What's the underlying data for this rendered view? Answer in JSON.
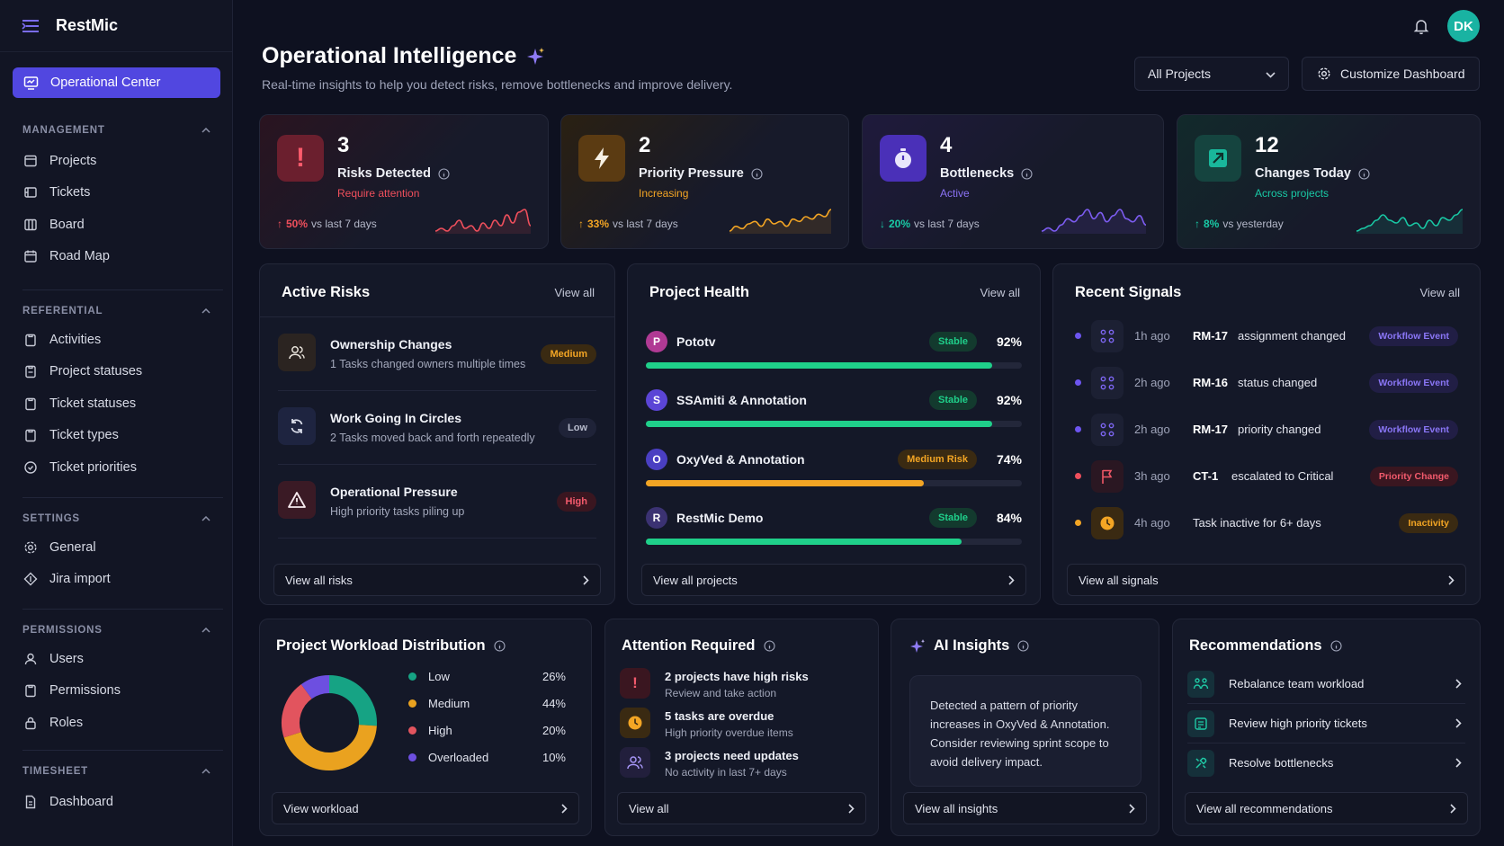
{
  "app": {
    "name": "RestMic",
    "user_initials": "DK"
  },
  "sidebar": {
    "active": "Operational Center",
    "sections": [
      {
        "title": "MANAGEMENT",
        "items": [
          "Projects",
          "Tickets",
          "Board",
          "Road Map"
        ]
      },
      {
        "title": "REFERENTIAL",
        "items": [
          "Activities",
          "Project statuses",
          "Ticket statuses",
          "Ticket types",
          "Ticket priorities"
        ]
      },
      {
        "title": "SETTINGS",
        "items": [
          "General",
          "Jira import"
        ]
      },
      {
        "title": "PERMISSIONS",
        "items": [
          "Users",
          "Permissions",
          "Roles"
        ]
      },
      {
        "title": "TIMESHEET",
        "items": [
          "Dashboard"
        ]
      }
    ]
  },
  "header": {
    "title": "Operational Intelligence",
    "subtitle": "Real-time insights to help you detect risks, remove bottlenecks and improve delivery.",
    "project_select": "All Projects",
    "customize": "Customize Dashboard"
  },
  "kpis": [
    {
      "value": "3",
      "label": "Risks Detected",
      "status": "Require attention",
      "change": "50%",
      "compare": "vs last 7 days",
      "color": "#ef4f5c",
      "spark": [
        6,
        7,
        6,
        8,
        10,
        7,
        8,
        6,
        9,
        7,
        10,
        8,
        12,
        9,
        13,
        14,
        8
      ]
    },
    {
      "value": "2",
      "label": "Priority Pressure",
      "status": "Increasing",
      "change": "33%",
      "compare": "vs last 7 days",
      "color": "#f3a524",
      "spark": [
        4,
        6,
        5,
        7,
        8,
        6,
        9,
        7,
        8,
        6,
        9,
        8,
        10,
        9,
        11,
        10,
        13
      ]
    },
    {
      "value": "4",
      "label": "Bottlenecks",
      "status": "Active",
      "change": "20%",
      "compare": "vs last 7 days",
      "color": "#7c5cf0",
      "spark": [
        5,
        6,
        5,
        7,
        9,
        8,
        10,
        12,
        9,
        11,
        8,
        10,
        12,
        9,
        8,
        10,
        7
      ]
    },
    {
      "value": "12",
      "label": "Changes Today",
      "status": "Across projects",
      "change": "8%",
      "compare": "vs yesterday",
      "color": "#19c9a5",
      "spark": [
        4,
        5,
        6,
        8,
        10,
        8,
        7,
        9,
        6,
        7,
        5,
        8,
        6,
        9,
        8,
        10,
        12
      ]
    }
  ],
  "active_risks": {
    "title": "Active Risks",
    "view_all": "View all",
    "footer": "View all risks",
    "items": [
      {
        "title": "Ownership Changes",
        "desc": "1 Tasks changed owners multiple times",
        "level": "Medium"
      },
      {
        "title": "Work Going In Circles",
        "desc": "2 Tasks moved back and forth repeatedly",
        "level": "Low"
      },
      {
        "title": "Operational Pressure",
        "desc": "High priority tasks piling up",
        "level": "High"
      }
    ]
  },
  "project_health": {
    "title": "Project Health",
    "view_all": "View all",
    "footer": "View all projects",
    "items": [
      {
        "initial": "P",
        "name": "Pototv",
        "status": "Stable",
        "percent": "92%",
        "value": 92
      },
      {
        "initial": "S",
        "name": "SSAmiti & Annotation",
        "status": "Stable",
        "percent": "92%",
        "value": 92
      },
      {
        "initial": "O",
        "name": "OxyVed & Annotation",
        "status": "Medium Risk",
        "percent": "74%",
        "value": 74
      },
      {
        "initial": "R",
        "name": "RestMic Demo",
        "status": "Stable",
        "percent": "84%",
        "value": 84
      }
    ]
  },
  "recent_signals": {
    "title": "Recent Signals",
    "view_all": "View all",
    "footer": "View all signals",
    "items": [
      {
        "time": "1h ago",
        "id": "RM-17",
        "text": "assignment changed",
        "badge": "Workflow Event"
      },
      {
        "time": "2h ago",
        "id": "RM-16",
        "text": "status changed",
        "badge": "Workflow Event"
      },
      {
        "time": "2h ago",
        "id": "RM-17",
        "text": "priority changed",
        "badge": "Workflow Event"
      },
      {
        "time": "3h ago",
        "id": "CT-1",
        "text": "escalated to Critical",
        "badge": "Priority Change"
      },
      {
        "time": "4h ago",
        "id": "",
        "text": "Task inactive for 6+ days",
        "badge": "Inactivity"
      }
    ]
  },
  "workload": {
    "title": "Project Workload Distribution",
    "footer": "View workload",
    "items": [
      {
        "label": "Low",
        "percent": "26%",
        "value": 26,
        "color": "#16a384"
      },
      {
        "label": "Medium",
        "percent": "44%",
        "value": 44,
        "color": "#eaa21f"
      },
      {
        "label": "High",
        "percent": "20%",
        "value": 20,
        "color": "#e2545e"
      },
      {
        "label": "Overloaded",
        "percent": "10%",
        "value": 10,
        "color": "#6d4fe0"
      }
    ]
  },
  "attention": {
    "title": "Attention Required",
    "footer": "View all",
    "items": [
      {
        "title": "2 projects have high risks",
        "desc": "Review and take action"
      },
      {
        "title": "5 tasks are overdue",
        "desc": "High priority overdue items"
      },
      {
        "title": "3 projects need updates",
        "desc": "No activity in last 7+ days"
      }
    ]
  },
  "ai_insights": {
    "title": "AI Insights",
    "footer": "View all insights",
    "text": "Detected a pattern of priority increases in OxyVed & Annotation. Consider reviewing sprint scope to avoid delivery impact."
  },
  "recommendations": {
    "title": "Recommendations",
    "footer": "View all recommendations",
    "items": [
      "Rebalance team workload",
      "Review high priority tickets",
      "Resolve bottlenecks"
    ]
  }
}
